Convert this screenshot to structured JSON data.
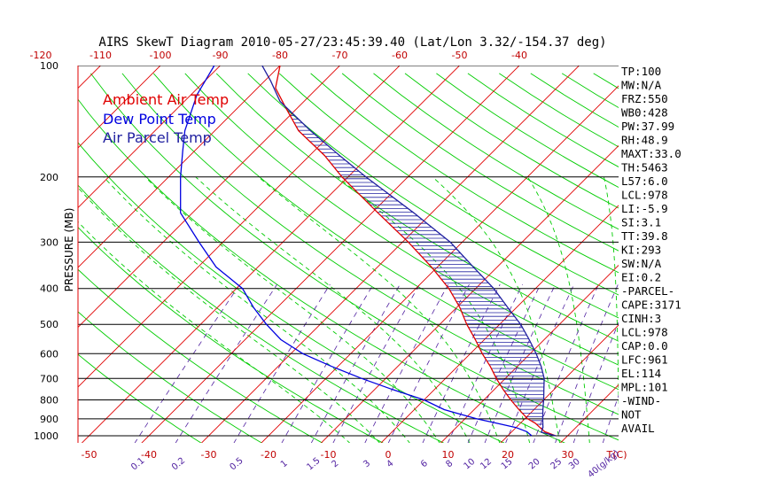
{
  "chart_data": {
    "type": "skewt",
    "title": "AIRS SkewT Diagram 2010-05-27/23:45:39.40 (Lat/Lon 3.32/-154.37 deg)",
    "ylabel": "PRESSURE (MB)",
    "pressure_ticks": [
      "100",
      "200",
      "300",
      "400",
      "500",
      "600",
      "700",
      "800",
      "900",
      "1000"
    ],
    "temp_ticks_bottom": [
      "-50",
      "-40",
      "-30",
      "-20",
      "-10",
      "0",
      "10",
      "20",
      "30",
      "T(C)"
    ],
    "temp_ticks_top": [
      "-120",
      "-110",
      "-100",
      "-90",
      "-80",
      "-70",
      "-60",
      "-50",
      "-40"
    ],
    "mixing_ratio_ticks": [
      "0.1",
      "0.2",
      "0.5",
      "1",
      "1.5",
      "2",
      "3",
      "4",
      "6",
      "8",
      "10",
      "12",
      "15",
      "20",
      "25",
      "30",
      "40(g/kg)"
    ],
    "legend": [
      {
        "label": "Ambient Air Temp",
        "color": "#e00000"
      },
      {
        "label": "Dew Point Temp",
        "color": "#0000e0"
      },
      {
        "label": "Air Parcel Temp",
        "color": "#2020a0"
      }
    ],
    "indices": [
      "TP:100",
      "MW:N/A",
      "FRZ:550",
      "WB0:428",
      "PW:37.99",
      "RH:48.9",
      "MAXT:33.0",
      "TH:5463",
      "L57:6.0",
      "LCL:978",
      "LI:-5.9",
      "SI:3.1",
      "TT:39.8",
      "KI:293",
      "SW:N/A",
      "EI:0.2",
      "-PARCEL-",
      "CAPE:3171",
      "CINH:3",
      "LCL:978",
      "CAP:0.0",
      "LFC:961",
      "EL:114",
      "MPL:101",
      "-WIND-",
      "NOT",
      "AVAIL"
    ],
    "series": [
      {
        "name": "Ambient Air Temp",
        "points": [
          [
            1000,
            28
          ],
          [
            975,
            25.5
          ],
          [
            950,
            24
          ],
          [
            925,
            22.5
          ],
          [
            900,
            20.5
          ],
          [
            850,
            17.5
          ],
          [
            800,
            14.5
          ],
          [
            750,
            11.5
          ],
          [
            700,
            8.5
          ],
          [
            650,
            5.5
          ],
          [
            600,
            2
          ],
          [
            550,
            -1.5
          ],
          [
            500,
            -5.5
          ],
          [
            450,
            -9.5
          ],
          [
            400,
            -14.5
          ],
          [
            350,
            -21
          ],
          [
            300,
            -29
          ],
          [
            250,
            -39
          ],
          [
            200,
            -51
          ],
          [
            175,
            -57.5
          ],
          [
            150,
            -66
          ],
          [
            130,
            -72
          ],
          [
            115,
            -77
          ],
          [
            100,
            -80
          ]
        ]
      },
      {
        "name": "Dew Point Temp",
        "points": [
          [
            1000,
            24
          ],
          [
            975,
            22.5
          ],
          [
            950,
            20
          ],
          [
            925,
            16
          ],
          [
            900,
            12
          ],
          [
            850,
            5
          ],
          [
            800,
            0
          ],
          [
            750,
            -7
          ],
          [
            700,
            -14
          ],
          [
            650,
            -21
          ],
          [
            600,
            -28
          ],
          [
            550,
            -34
          ],
          [
            500,
            -39
          ],
          [
            450,
            -44
          ],
          [
            400,
            -49
          ],
          [
            350,
            -57
          ],
          [
            300,
            -64
          ],
          [
            250,
            -72
          ],
          [
            200,
            -78
          ],
          [
            170,
            -82
          ],
          [
            150,
            -85
          ],
          [
            120,
            -89
          ],
          [
            100,
            -91
          ]
        ]
      },
      {
        "name": "Air Parcel Temp",
        "points": [
          [
            1000,
            28
          ],
          [
            978,
            25
          ],
          [
            950,
            24.5
          ],
          [
            900,
            23
          ],
          [
            850,
            21.5
          ],
          [
            800,
            20
          ],
          [
            750,
            18.3
          ],
          [
            700,
            16.5
          ],
          [
            650,
            14
          ],
          [
            600,
            11
          ],
          [
            550,
            7.5
          ],
          [
            500,
            3.5
          ],
          [
            450,
            -1.5
          ],
          [
            400,
            -7
          ],
          [
            350,
            -14
          ],
          [
            300,
            -22
          ],
          [
            250,
            -33
          ],
          [
            200,
            -47
          ],
          [
            175,
            -55
          ],
          [
            150,
            -64
          ],
          [
            125,
            -74
          ],
          [
            110,
            -79
          ],
          [
            100,
            -83
          ]
        ]
      }
    ],
    "colors": {
      "isobar": "#000000",
      "isotherm": "#e00000",
      "dry_adiabat": "#00cc00",
      "moist_adiabat": "#00cc00",
      "mixing_ratio": "#5020a0",
      "hatch": "#2020a0",
      "pressure_axis_line": "#e00000"
    }
  }
}
